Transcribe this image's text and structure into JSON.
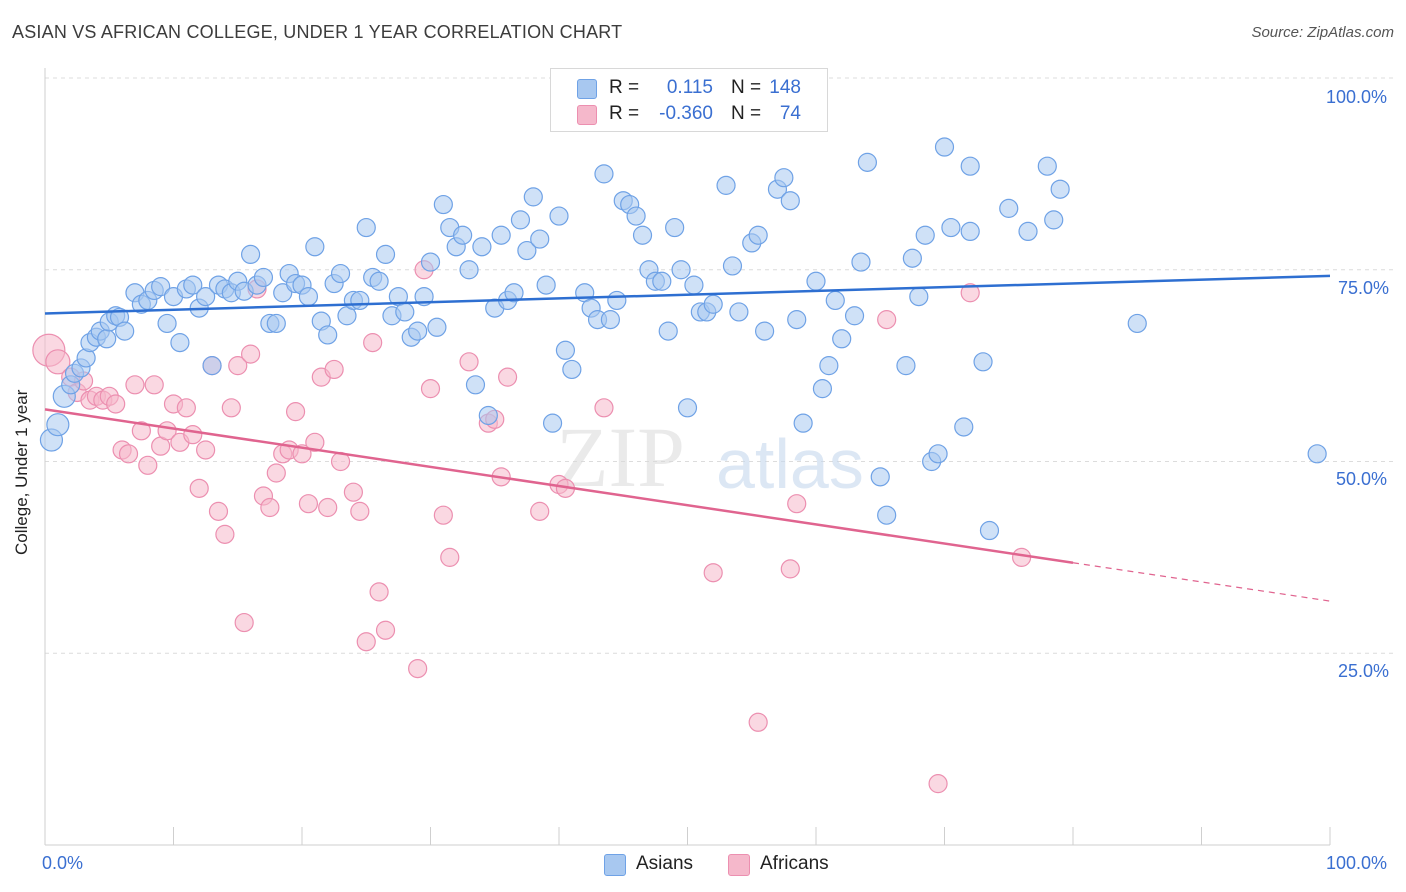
{
  "title": "ASIAN VS AFRICAN COLLEGE, UNDER 1 YEAR CORRELATION CHART",
  "source": "Source: ZipAtlas.com",
  "watermark": "ZIPatlas",
  "legend": {
    "rows": [
      {
        "r_label": "R =",
        "r_value": "0.115",
        "n_label": "N =",
        "n_value": "148",
        "color": "#a8c8f0"
      },
      {
        "r_label": "R =",
        "r_value": "-0.360",
        "n_label": "N =",
        "n_value": "74",
        "color": "#f5b8cb"
      }
    ]
  },
  "axis": {
    "ylabel": "College, Under 1 year",
    "x_min_label": "0.0%",
    "x_max_label": "100.0%",
    "y_tick_labels": [
      "100.0%",
      "75.0%",
      "50.0%",
      "25.0%"
    ]
  },
  "bottom_legend": [
    {
      "label": "Asians",
      "color": "#a8c8f0"
    },
    {
      "label": "Africans",
      "color": "#f5b8cb"
    }
  ],
  "chart_data": {
    "type": "scatter",
    "title": "ASIAN VS AFRICAN COLLEGE, UNDER 1 YEAR CORRELATION CHART",
    "xlabel": "",
    "ylabel": "College, Under 1 year",
    "xlim": [
      0,
      100
    ],
    "ylim": [
      0,
      100
    ],
    "y_ticks": [
      25,
      50,
      75,
      100
    ],
    "grid": "horizontal dashed",
    "legend_position": "top-center",
    "series": [
      {
        "name": "Asians",
        "color": "#6fa2e6",
        "fill": "#a8c8f0",
        "trend": {
          "x": [
            0,
            100
          ],
          "y": [
            69.3,
            74.2
          ]
        },
        "points": [
          [
            0.5,
            52.8
          ],
          [
            1.0,
            54.8
          ],
          [
            1.5,
            58.5
          ],
          [
            2.0,
            60.0
          ],
          [
            2.3,
            61.5
          ],
          [
            2.8,
            62.2
          ],
          [
            3.2,
            63.5
          ],
          [
            3.5,
            65.5
          ],
          [
            4.0,
            66.2
          ],
          [
            4.3,
            67.0
          ],
          [
            4.8,
            66.0
          ],
          [
            5.0,
            68.2
          ],
          [
            5.5,
            69.0
          ],
          [
            5.8,
            68.8
          ],
          [
            6.2,
            67.0
          ],
          [
            7.0,
            72.0
          ],
          [
            7.5,
            70.5
          ],
          [
            8.0,
            71.0
          ],
          [
            8.5,
            72.3
          ],
          [
            9.0,
            72.8
          ],
          [
            9.5,
            68.0
          ],
          [
            10.0,
            71.5
          ],
          [
            10.5,
            65.5
          ],
          [
            11.0,
            72.5
          ],
          [
            11.5,
            73.0
          ],
          [
            12.0,
            70.0
          ],
          [
            12.5,
            71.5
          ],
          [
            13.0,
            62.5
          ],
          [
            13.5,
            73.0
          ],
          [
            14.0,
            72.5
          ],
          [
            14.5,
            72.0
          ],
          [
            15.0,
            73.5
          ],
          [
            15.5,
            72.2
          ],
          [
            16.0,
            77.0
          ],
          [
            16.5,
            73.0
          ],
          [
            17.0,
            74.0
          ],
          [
            17.5,
            68.0
          ],
          [
            18.0,
            68.0
          ],
          [
            18.5,
            72.0
          ],
          [
            19.0,
            74.5
          ],
          [
            19.5,
            73.2
          ],
          [
            20.0,
            73.0
          ],
          [
            20.5,
            71.5
          ],
          [
            21.0,
            78.0
          ],
          [
            21.5,
            68.3
          ],
          [
            22.0,
            66.5
          ],
          [
            22.5,
            73.2
          ],
          [
            23.0,
            74.5
          ],
          [
            23.5,
            69.0
          ],
          [
            24.0,
            71.0
          ],
          [
            24.5,
            71.0
          ],
          [
            25.0,
            80.5
          ],
          [
            25.5,
            74.0
          ],
          [
            26.0,
            73.5
          ],
          [
            26.5,
            77.0
          ],
          [
            27.0,
            69.0
          ],
          [
            27.5,
            71.5
          ],
          [
            28.0,
            69.5
          ],
          [
            28.5,
            66.2
          ],
          [
            29.0,
            67.0
          ],
          [
            29.5,
            71.5
          ],
          [
            30.0,
            76.0
          ],
          [
            30.5,
            67.5
          ],
          [
            31.0,
            83.5
          ],
          [
            31.5,
            80.5
          ],
          [
            32.0,
            78.0
          ],
          [
            32.5,
            79.5
          ],
          [
            33.0,
            75.0
          ],
          [
            33.5,
            60.0
          ],
          [
            34.0,
            78.0
          ],
          [
            34.5,
            56.0
          ],
          [
            35.0,
            70.0
          ],
          [
            35.5,
            79.5
          ],
          [
            36.0,
            71.0
          ],
          [
            36.5,
            72.0
          ],
          [
            37.0,
            81.5
          ],
          [
            37.5,
            77.5
          ],
          [
            38.0,
            84.5
          ],
          [
            38.5,
            79.0
          ],
          [
            39.0,
            73.0
          ],
          [
            39.5,
            55.0
          ],
          [
            40.0,
            82.0
          ],
          [
            40.5,
            64.5
          ],
          [
            41.0,
            62.0
          ],
          [
            42.0,
            72.0
          ],
          [
            42.5,
            70.0
          ],
          [
            43.0,
            68.5
          ],
          [
            43.5,
            87.5
          ],
          [
            44.0,
            68.5
          ],
          [
            44.5,
            71.0
          ],
          [
            45.0,
            84.0
          ],
          [
            45.5,
            83.5
          ],
          [
            46.0,
            82.0
          ],
          [
            46.5,
            79.5
          ],
          [
            47.0,
            75.0
          ],
          [
            47.5,
            73.5
          ],
          [
            48.0,
            73.5
          ],
          [
            48.5,
            67.0
          ],
          [
            49.0,
            80.5
          ],
          [
            49.5,
            75.0
          ],
          [
            50.0,
            57.0
          ],
          [
            50.5,
            73.0
          ],
          [
            51.0,
            69.5
          ],
          [
            51.5,
            69.5
          ],
          [
            52.0,
            70.5
          ],
          [
            53.0,
            86.0
          ],
          [
            53.5,
            75.5
          ],
          [
            54.0,
            69.5
          ],
          [
            55.0,
            78.5
          ],
          [
            55.5,
            79.5
          ],
          [
            56.0,
            67.0
          ],
          [
            57.0,
            85.5
          ],
          [
            57.5,
            87.0
          ],
          [
            58.0,
            84.0
          ],
          [
            58.5,
            68.5
          ],
          [
            59.0,
            55.0
          ],
          [
            60.0,
            73.5
          ],
          [
            60.5,
            59.5
          ],
          [
            61.0,
            62.5
          ],
          [
            61.5,
            71.0
          ],
          [
            62.0,
            66.0
          ],
          [
            63.0,
            69.0
          ],
          [
            63.5,
            76.0
          ],
          [
            64.0,
            89.0
          ],
          [
            65.0,
            48.0
          ],
          [
            65.5,
            43.0
          ],
          [
            67.0,
            62.5
          ],
          [
            67.5,
            76.5
          ],
          [
            68.0,
            71.5
          ],
          [
            68.5,
            79.5
          ],
          [
            69.0,
            50.0
          ],
          [
            69.5,
            51.0
          ],
          [
            70.0,
            91.0
          ],
          [
            70.5,
            80.5
          ],
          [
            71.5,
            54.5
          ],
          [
            72.0,
            88.5
          ],
          [
            72.0,
            80.0
          ],
          [
            73.0,
            63.0
          ],
          [
            73.5,
            41.0
          ],
          [
            75.0,
            83.0
          ],
          [
            76.5,
            80.0
          ],
          [
            78.0,
            88.5
          ],
          [
            78.5,
            81.5
          ],
          [
            79.0,
            85.5
          ],
          [
            85.0,
            68.0
          ],
          [
            99.0,
            51.0
          ]
        ]
      },
      {
        "name": "Africans",
        "color": "#ec8fb0",
        "fill": "#f5b8cb",
        "trend": {
          "x": [
            0,
            80
          ],
          "y": [
            56.8,
            36.8
          ]
        },
        "trend_dashed": {
          "x": [
            80,
            100
          ],
          "y": [
            36.8,
            31.8
          ]
        },
        "points": [
          [
            0.3,
            64.5
          ],
          [
            1.0,
            63.0
          ],
          [
            2.0,
            61.0
          ],
          [
            2.5,
            59.0
          ],
          [
            3.0,
            60.5
          ],
          [
            3.5,
            58.0
          ],
          [
            4.0,
            58.5
          ],
          [
            4.5,
            58.0
          ],
          [
            5.0,
            58.5
          ],
          [
            5.5,
            57.5
          ],
          [
            6.0,
            51.5
          ],
          [
            6.5,
            51.0
          ],
          [
            7.0,
            60.0
          ],
          [
            7.5,
            54.0
          ],
          [
            8.0,
            49.5
          ],
          [
            8.5,
            60.0
          ],
          [
            9.0,
            52.0
          ],
          [
            9.5,
            54.0
          ],
          [
            10.0,
            57.5
          ],
          [
            10.5,
            52.5
          ],
          [
            11.0,
            57.0
          ],
          [
            11.5,
            53.5
          ],
          [
            12.0,
            46.5
          ],
          [
            12.5,
            51.5
          ],
          [
            13.0,
            62.5
          ],
          [
            13.5,
            43.5
          ],
          [
            14.0,
            40.5
          ],
          [
            14.5,
            57.0
          ],
          [
            15.0,
            62.5
          ],
          [
            15.5,
            29.0
          ],
          [
            16.0,
            64.0
          ],
          [
            16.5,
            72.5
          ],
          [
            17.0,
            45.5
          ],
          [
            17.5,
            44.0
          ],
          [
            18.0,
            48.5
          ],
          [
            18.5,
            51.0
          ],
          [
            19.0,
            51.5
          ],
          [
            19.5,
            56.5
          ],
          [
            20.0,
            51.0
          ],
          [
            20.5,
            44.5
          ],
          [
            21.0,
            52.5
          ],
          [
            21.5,
            61.0
          ],
          [
            22.0,
            44.0
          ],
          [
            22.5,
            62.0
          ],
          [
            23.0,
            50.0
          ],
          [
            24.0,
            46.0
          ],
          [
            24.5,
            43.5
          ],
          [
            25.0,
            26.5
          ],
          [
            25.5,
            65.5
          ],
          [
            26.0,
            33.0
          ],
          [
            26.5,
            28.0
          ],
          [
            29.0,
            23.0
          ],
          [
            29.5,
            75.0
          ],
          [
            30.0,
            59.5
          ],
          [
            31.5,
            37.5
          ],
          [
            33.0,
            63.0
          ],
          [
            34.5,
            55.0
          ],
          [
            35.0,
            55.5
          ],
          [
            35.5,
            48.0
          ],
          [
            36.0,
            61.0
          ],
          [
            38.5,
            43.5
          ],
          [
            40.0,
            47.0
          ],
          [
            40.5,
            46.5
          ],
          [
            43.5,
            57.0
          ],
          [
            52.0,
            35.5
          ],
          [
            55.5,
            16.0
          ],
          [
            58.0,
            36.0
          ],
          [
            58.5,
            44.5
          ],
          [
            65.5,
            68.5
          ],
          [
            69.5,
            8.0
          ],
          [
            72.0,
            72.0
          ],
          [
            76.0,
            37.5
          ],
          [
            31.0,
            43.0
          ]
        ]
      }
    ]
  }
}
